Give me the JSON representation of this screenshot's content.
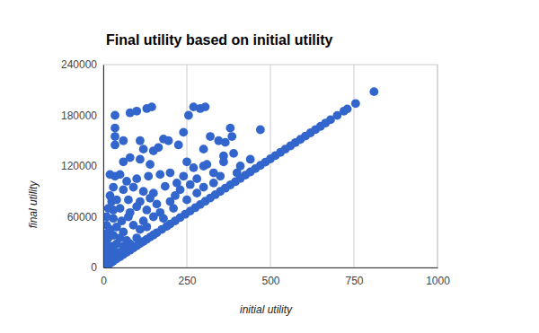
{
  "chart_data": {
    "type": "scatter",
    "title": "Final utility based on initial utility",
    "x_label": "initial utility",
    "y_label": "final utility",
    "color": "#3366cc",
    "marker": "circle",
    "grid": true,
    "xlim": [
      0,
      1000
    ],
    "xticks": [
      0,
      250,
      500,
      750,
      1000
    ],
    "ylim": [
      0,
      240000
    ],
    "yticks": [
      0,
      60000,
      120000,
      180000,
      240000
    ],
    "x": [
      5,
      10,
      15,
      20,
      25,
      30,
      40,
      50,
      60,
      70,
      80,
      90,
      100,
      110,
      120,
      130,
      140,
      150,
      160,
      175,
      190,
      200,
      215,
      230,
      245,
      260,
      275,
      290,
      305,
      320,
      335,
      350,
      365,
      380,
      395,
      410,
      425,
      440,
      455,
      470,
      485,
      500,
      515,
      530,
      545,
      560,
      575,
      590,
      605,
      620,
      635,
      650,
      665,
      680,
      700,
      720,
      730,
      755,
      810,
      35,
      80,
      100,
      130,
      145,
      270,
      290,
      305,
      255,
      380,
      35,
      35,
      35,
      60,
      110,
      180,
      195,
      120,
      150,
      165,
      240,
      225,
      300,
      320,
      345,
      365,
      385,
      390,
      360,
      470,
      80,
      110,
      60,
      140,
      250,
      270,
      300,
      310,
      330,
      20,
      35,
      50,
      70,
      100,
      135,
      170,
      200,
      240,
      280,
      220,
      30,
      60,
      90,
      120,
      150,
      185,
      230,
      260,
      300,
      20,
      25,
      40,
      75,
      110,
      140,
      160,
      200,
      250,
      15,
      30,
      50,
      80,
      100,
      130,
      170,
      210,
      10,
      30,
      55,
      75,
      120,
      150,
      180,
      10,
      20,
      40,
      60,
      90,
      110,
      130,
      5,
      15,
      30,
      50,
      70,
      100,
      10,
      25,
      40,
      60,
      80,
      5,
      15,
      30,
      45,
      8,
      20,
      35,
      3,
      12,
      25,
      360,
      410,
      440,
      350,
      400,
      215,
      280,
      330
    ],
    "values": [
      1300,
      2600,
      3900,
      5100,
      6400,
      7700,
      10300,
      12800,
      15400,
      18000,
      20500,
      23100,
      25700,
      28300,
      30800,
      33400,
      36000,
      38500,
      41100,
      45000,
      48800,
      51400,
      55200,
      59100,
      63000,
      66800,
      70700,
      74500,
      78400,
      82200,
      86100,
      90000,
      93800,
      97700,
      101500,
      105400,
      109200,
      113100,
      116900,
      120800,
      124600,
      128500,
      132400,
      136200,
      140100,
      143900,
      147800,
      151600,
      155500,
      159300,
      163200,
      167000,
      170900,
      174800,
      179900,
      185000,
      187600,
      194000,
      208000,
      180000,
      183000,
      185000,
      188000,
      190000,
      190000,
      188000,
      190000,
      180000,
      165000,
      165000,
      155000,
      145000,
      150000,
      150000,
      152000,
      150000,
      140000,
      138000,
      142000,
      160000,
      145000,
      140000,
      155000,
      150000,
      148000,
      155000,
      135000,
      132000,
      163000,
      130000,
      128000,
      125000,
      122000,
      125000,
      118000,
      120000,
      122000,
      112000,
      110000,
      108000,
      110000,
      102000,
      105000,
      108000,
      110000,
      112000,
      108000,
      105000,
      100000,
      95000,
      92000,
      95000,
      90000,
      88000,
      96000,
      92000,
      98000,
      95000,
      85000,
      78000,
      80000,
      80000,
      78000,
      82000,
      75000,
      78000,
      80000,
      70000,
      68000,
      70000,
      65000,
      72000,
      68000,
      65000,
      70000,
      60000,
      58000,
      55000,
      60000,
      55000,
      60000,
      58000,
      50000,
      45000,
      48000,
      42000,
      50000,
      45000,
      48000,
      40000,
      35000,
      38000,
      35000,
      32000,
      35000,
      28000,
      25000,
      28000,
      25000,
      28000,
      20000,
      18000,
      20000,
      18000,
      12000,
      12000,
      14000,
      8000,
      7000,
      9000,
      125000,
      120000,
      128000,
      108000,
      112000,
      85000,
      88000,
      100000
    ]
  }
}
